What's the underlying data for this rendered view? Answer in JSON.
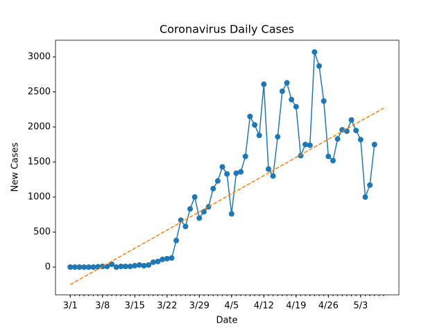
{
  "chart_data": {
    "type": "line",
    "title": "Coronavirus Daily Cases",
    "x_label": "Date",
    "y_label": "New Cases",
    "series": [
      {
        "color": "#1f77b4",
        "style": "solid",
        "markers": true,
        "x": [
          0,
          1,
          2,
          3,
          4,
          5,
          6,
          7,
          8,
          9,
          10,
          11,
          12,
          13,
          14,
          15,
          16,
          17,
          18,
          19,
          20,
          21,
          22,
          23,
          24,
          25,
          26,
          27,
          28,
          29,
          30,
          31,
          32,
          33,
          34,
          35,
          36,
          37,
          38,
          39,
          40,
          41,
          42,
          43,
          44,
          45,
          46,
          47,
          48,
          49,
          50,
          51,
          52,
          53,
          54,
          55,
          56,
          57,
          58,
          59,
          60,
          61,
          62,
          63,
          64,
          65,
          66
        ],
        "values": [
          0,
          0,
          0,
          0,
          0,
          0,
          5,
          10,
          10,
          40,
          0,
          10,
          10,
          10,
          20,
          30,
          20,
          30,
          70,
          80,
          110,
          120,
          130,
          380,
          670,
          580,
          830,
          1000,
          700,
          790,
          860,
          1120,
          1230,
          1430,
          1330,
          760,
          1340,
          1360,
          1580,
          2150,
          2030,
          1880,
          2610,
          1400,
          1300,
          1860,
          2510,
          2630,
          2390,
          2290,
          1590,
          1750,
          1740,
          3070,
          2870,
          2370,
          1580,
          1520,
          1830,
          1960,
          1940,
          2100,
          1950,
          1820,
          1000,
          1170,
          1750
        ]
      },
      {
        "color": "#ff7f0e",
        "style": "dashed",
        "markers": false,
        "x": [
          0,
          68
        ],
        "values": [
          -250,
          2270
        ]
      }
    ],
    "xlim": [
      -3.2,
      71.3
    ],
    "xticks": [
      {
        "value": 0,
        "label": "3/1"
      },
      {
        "value": 7,
        "label": "3/8"
      },
      {
        "value": 14,
        "label": "3/15"
      },
      {
        "value": 21,
        "label": "3/22"
      },
      {
        "value": 28,
        "label": "3/29"
      },
      {
        "value": 35,
        "label": "4/5"
      },
      {
        "value": 42,
        "label": "4/12"
      },
      {
        "value": 49,
        "label": "4/19"
      },
      {
        "value": 56,
        "label": "4/26"
      },
      {
        "value": 63,
        "label": "5/3"
      }
    ],
    "xminorticks": [
      0,
      1,
      2,
      3,
      4,
      5,
      6,
      7,
      8,
      9,
      10,
      11,
      12,
      13,
      14,
      15,
      16,
      17,
      18,
      19,
      20,
      21,
      22,
      23,
      24,
      25,
      26,
      27,
      28,
      29,
      30,
      31,
      32,
      33,
      34,
      35,
      36,
      37,
      38,
      39,
      40,
      41,
      42,
      43,
      44,
      45,
      46,
      47,
      48,
      49,
      50,
      51,
      52,
      53,
      54,
      55,
      56,
      57,
      58,
      59,
      60,
      61,
      62,
      63,
      64,
      65,
      66,
      67,
      68
    ],
    "ylim": [
      -396,
      3238
    ],
    "yticks": [
      0,
      500,
      1000,
      1500,
      2000,
      2500,
      3000
    ],
    "grid": false
  }
}
